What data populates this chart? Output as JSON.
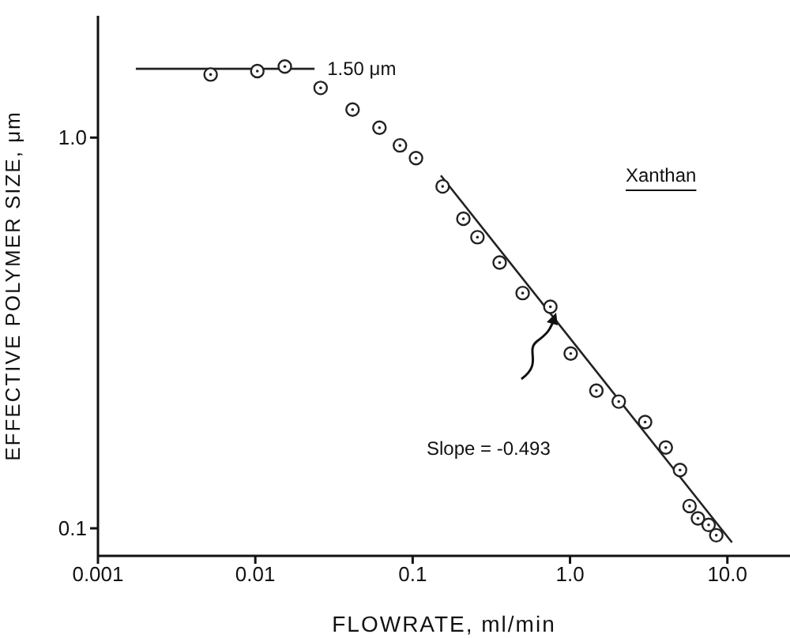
{
  "chart_data": {
    "type": "scatter",
    "xlabel": "FLOWRATE, ml/min",
    "ylabel": "EFFECTIVE POLYMER SIZE, μm",
    "log": "xy",
    "grid": false,
    "legend": false,
    "xlim": [
      0.001,
      25
    ],
    "xticks": [
      0.001,
      0.01,
      0.1,
      {
        "value": 1,
        "label": "1.0"
      },
      {
        "value": 10,
        "label": "10.0"
      }
    ],
    "ylim": [
      0.085,
      2.05
    ],
    "yticks": [
      0.1,
      {
        "value": 1,
        "label": "1.0"
      }
    ],
    "series": [
      {
        "color": "#222222",
        "marker": "circle",
        "x": [
          0.0052,
          0.0103,
          0.0154,
          0.026,
          0.0415,
          0.0615,
          0.083,
          0.105,
          0.155,
          0.21,
          0.258,
          0.357,
          0.5,
          0.75,
          1.01,
          1.47,
          2.04,
          3.0,
          4.06,
          5.0,
          5.75,
          6.5,
          7.6,
          8.5
        ],
        "values": [
          1.45,
          1.48,
          1.52,
          1.34,
          1.18,
          1.06,
          0.955,
          0.886,
          0.75,
          0.62,
          0.556,
          0.479,
          0.4,
          0.369,
          0.28,
          0.225,
          0.211,
          0.187,
          0.161,
          0.141,
          0.114,
          0.106,
          0.102,
          0.096
        ]
      },
      {
        "type": "line",
        "color": "#222222",
        "marker": "none",
        "x": [
          0.151,
          10.7
        ],
        "values": [
          0.8,
          0.092
        ]
      },
      {
        "type": "line",
        "color": "#222222",
        "marker": "none",
        "x": [
          0.00174,
          0.0238
        ],
        "values": [
          1.5,
          1.5
        ]
      }
    ],
    "annotations": [
      "Xanthan",
      {
        "text": "1.50 μm",
        "x": 0.0238,
        "y": 1.5
      },
      "Slope = -0.493"
    ]
  }
}
